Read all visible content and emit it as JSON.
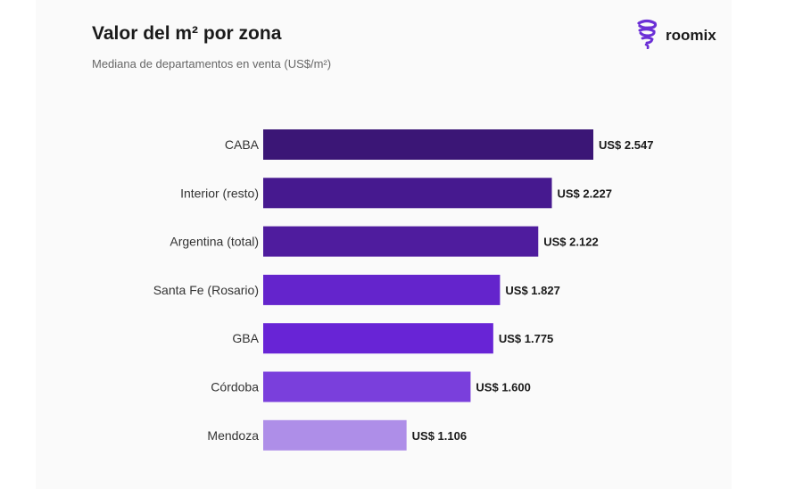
{
  "header": {
    "title": "Valor del m² por zona",
    "subtitle": "Mediana de departamentos en venta (US$/m²)"
  },
  "brand": {
    "name": "roomix",
    "logo_icon": "roomix-swirl-icon",
    "color": "#6b2fd6"
  },
  "chart_data": {
    "type": "bar",
    "orientation": "horizontal",
    "title": "Valor del m² por zona",
    "subtitle": "Mediana de departamentos en venta (US$/m²)",
    "xlabel": "",
    "ylabel": "",
    "grid": false,
    "xlim": [
      0,
      2547
    ],
    "categories": [
      "CABA",
      "Interior (resto)",
      "Argentina (total)",
      "Santa Fe (Rosario)",
      "GBA",
      "Córdoba",
      "Mendoza"
    ],
    "values": [
      2547,
      2227,
      2122,
      1827,
      1775,
      1600,
      1106
    ],
    "value_labels": [
      "US$ 2.547",
      "US$ 2.227",
      "US$ 2.122",
      "US$ 1.827",
      "US$ 1.775",
      "US$ 1.600",
      "US$ 1.106"
    ],
    "colors": [
      "#3b1676",
      "#46198f",
      "#4f1c9e",
      "#6424cc",
      "#6824d6",
      "#7a3fdc",
      "#ae8ee8"
    ]
  }
}
